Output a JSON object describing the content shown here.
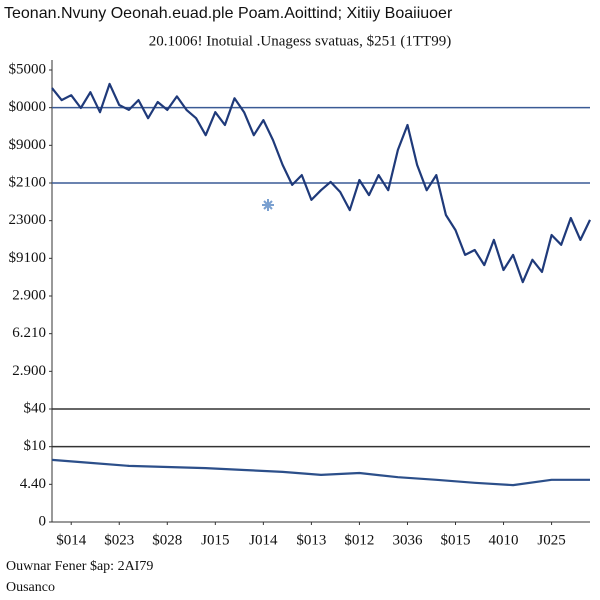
{
  "chart_data": {
    "type": "line",
    "title": "Teonan.Nvuny Oeonah.euad.ple Poam.Aoittind; Xitiiy Boaiiuoer",
    "subtitle": "20.1006! Inotuial .Unagess svatuas,    $251 (1TT99)",
    "footer": [
      "Ouwnar Fener   $ap: 2AI79",
      "Ousanco"
    ],
    "xlim": [
      -0.4,
      10.8
    ],
    "xticks": [
      {
        "value": 0,
        "label": "$014"
      },
      {
        "value": 1,
        "label": "$023"
      },
      {
        "value": 2,
        "label": "$028"
      },
      {
        "value": 3,
        "label": "J015"
      },
      {
        "value": 4,
        "label": "J014"
      },
      {
        "value": 5,
        "label": "$013"
      },
      {
        "value": 6,
        "label": "$012"
      },
      {
        "value": 7,
        "label": "3036"
      },
      {
        "value": 8,
        "label": "$015"
      },
      {
        "value": 9,
        "label": "4010"
      },
      {
        "value": 10,
        "label": "J025"
      }
    ],
    "ylim": [
      0,
      12
    ],
    "yticks": [
      0,
      {
        "value": 1,
        "label": "4.40"
      },
      {
        "value": 2,
        "label": "$10"
      },
      {
        "value": 3,
        "label": "$40"
      },
      {
        "value": 4,
        "label": "2.900"
      },
      {
        "value": 5,
        "label": "6.210"
      },
      {
        "value": 6,
        "label": "2.900"
      },
      {
        "value": 7,
        "label": "$9100"
      },
      {
        "value": 8,
        "label": "23000"
      },
      {
        "value": 9,
        "label": "$2100"
      },
      {
        "value": 10,
        "label": "$9000"
      },
      {
        "value": 11,
        "label": "$0000"
      },
      {
        "value": 12,
        "label": "$5000"
      }
    ],
    "reference_lines": [
      {
        "value": 11,
        "color": "#3a5a95"
      },
      {
        "value": 9,
        "color": "#3a5a95"
      },
      {
        "value": 3,
        "color": "#333333"
      },
      {
        "value": 2,
        "color": "#333333"
      }
    ],
    "series": [
      {
        "color": "#1f3a7a",
        "x": [
          -0.4,
          -0.2,
          0,
          0.2,
          0.4,
          0.6,
          0.8,
          1.0,
          1.2,
          1.4,
          1.6,
          1.8,
          2.0,
          2.2,
          2.4,
          2.6,
          2.8,
          3.0,
          3.2,
          3.4,
          3.6,
          3.8,
          4.0,
          4.2,
          4.4,
          4.6,
          4.8,
          5.0,
          5.2,
          5.4,
          5.6,
          5.8,
          6.0,
          6.2,
          6.4,
          6.6,
          6.8,
          7.0,
          7.2,
          7.4,
          7.6,
          7.8,
          8.0,
          8.2,
          8.4,
          8.6,
          8.8,
          9.0,
          9.2,
          9.4,
          9.6,
          9.8,
          10.0,
          10.2,
          10.4,
          10.6,
          10.8
        ],
        "values": [
          11.52,
          11.2,
          11.33,
          10.99,
          11.41,
          10.88,
          11.63,
          11.07,
          10.94,
          11.2,
          10.72,
          11.15,
          10.94,
          11.3,
          10.94,
          10.72,
          10.27,
          10.88,
          10.54,
          11.25,
          10.88,
          10.27,
          10.67,
          10.14,
          9.48,
          8.95,
          9.21,
          8.55,
          8.81,
          9.03,
          8.76,
          8.28,
          9.08,
          8.68,
          9.21,
          8.81,
          9.88,
          10.54,
          9.48,
          8.81,
          9.21,
          8.15,
          7.75,
          7.09,
          7.22,
          6.82,
          7.49,
          6.69,
          7.09,
          6.37,
          6.96,
          6.64,
          7.62,
          7.36,
          8.07,
          7.49,
          8.02
        ]
      },
      {
        "color": "#2c4f8a",
        "x": [
          -0.4,
          0.4,
          1.2,
          2.0,
          2.8,
          3.6,
          4.4,
          5.2,
          6.0,
          6.8,
          7.6,
          8.4,
          9.2,
          10.0,
          10.8
        ],
        "values": [
          1.65,
          1.57,
          1.49,
          1.46,
          1.43,
          1.38,
          1.33,
          1.25,
          1.3,
          1.19,
          1.12,
          1.04,
          0.98,
          1.12,
          1.12
        ]
      }
    ]
  }
}
